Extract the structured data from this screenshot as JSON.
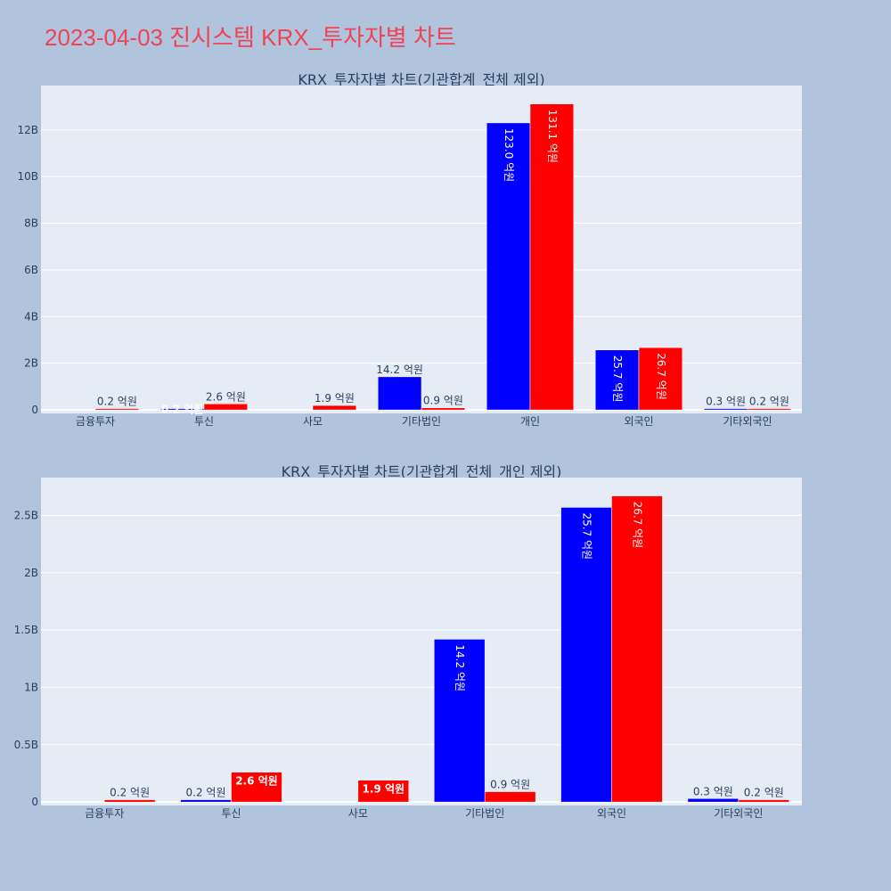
{
  "page_title": "2023-04-03 진시스템 KRX_투자자별 차트",
  "colors": {
    "background": "#b0c4de",
    "plot_bg": "#e5ecf6",
    "title": "#ee4455",
    "sell": "#0000ff",
    "buy": "#ff0000",
    "grid": "#ffffff",
    "text": "#2a3f5f"
  },
  "chart_data": [
    {
      "type": "bar",
      "title": "KRX_투자자별 차트(기관합계_전체 제외)",
      "categories": [
        "금융투자",
        "투신",
        "사모",
        "기타법인",
        "개인",
        "외국인",
        "기타외국인"
      ],
      "series": [
        {
          "color": "#0000ff",
          "values": [
            0,
            20000000,
            0,
            1420000000,
            12300000000,
            2570000000,
            30000000
          ],
          "labels": [
            "",
            "0.2 억원",
            "",
            "14.2 억원",
            "123.0 억원",
            "25.7 억원",
            "0.3 억원"
          ]
        },
        {
          "color": "#ff0000",
          "values": [
            20000000,
            260000000,
            190000000,
            90000000,
            13110000000,
            2670000000,
            20000000
          ],
          "labels": [
            "0.2 억원",
            "2.6 억원",
            "1.9 억원",
            "0.9 억원",
            "131.1 억원",
            "26.7 억원",
            "0.2 억원"
          ]
        }
      ],
      "yticks": [
        0,
        2000000000,
        4000000000,
        6000000000,
        8000000000,
        10000000000,
        12000000000
      ],
      "ytick_labels": [
        "0",
        "2B",
        "4B",
        "6B",
        "8B",
        "10B",
        "12B"
      ],
      "ylim": [
        -150000000,
        13900000000
      ],
      "grid": true,
      "bar_labels_inside": [
        false,
        true,
        false,
        false,
        true,
        true,
        false
      ],
      "bar_labels_inside_red": [
        false,
        false,
        false,
        false,
        true,
        true,
        false
      ],
      "rotated": [
        false,
        false,
        false,
        false,
        true,
        true,
        false
      ]
    },
    {
      "type": "bar",
      "title": "KRX_투자자별 차트(기관합계_전체_개인 제외)",
      "categories": [
        "금융투자",
        "투신",
        "사모",
        "기타법인",
        "외국인",
        "기타외국인"
      ],
      "series": [
        {
          "color": "#0000ff",
          "values": [
            0,
            20000000,
            0,
            1420000000,
            2570000000,
            30000000
          ],
          "labels": [
            "",
            "0.2 억원",
            "",
            "14.2 억원",
            "25.7 억원",
            "0.3 억원"
          ]
        },
        {
          "color": "#ff0000",
          "values": [
            20000000,
            260000000,
            190000000,
            90000000,
            2670000000,
            20000000
          ],
          "labels": [
            "0.2 억원",
            "2.6 억원",
            "1.9 억원",
            "0.9 억원",
            "26.7 억원",
            "0.2 억원"
          ]
        }
      ],
      "yticks": [
        0,
        500000000,
        1000000000,
        1500000000,
        2000000000,
        2500000000
      ],
      "ytick_labels": [
        "0",
        "0.5B",
        "1B",
        "1.5B",
        "2B",
        "2.5B"
      ],
      "ylim": [
        -30000000,
        2830000000
      ],
      "grid": true,
      "bar_labels_inside": [
        false,
        false,
        false,
        true,
        true,
        false
      ],
      "bar_labels_inside_red": [
        false,
        true,
        true,
        false,
        true,
        false
      ],
      "rotated": [
        false,
        false,
        false,
        true,
        true,
        false
      ]
    }
  ]
}
